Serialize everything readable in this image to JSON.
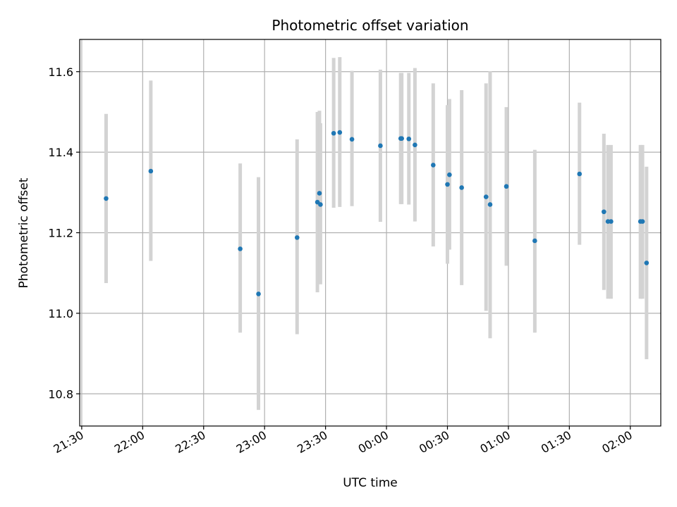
{
  "chart_data": {
    "type": "scatter",
    "title": "Photometric offset variation",
    "xlabel": "UTC time",
    "ylabel": "Photometric offset",
    "x_axis_type": "time",
    "x_start": "2023-01-01T21:30:00",
    "xlim": [
      "2023-01-01T21:29:00",
      "2023-01-02T02:15:00"
    ],
    "ylim": [
      10.72,
      11.68
    ],
    "grid": true,
    "x_ticks": [
      {
        "value": "2023-01-01T21:30:00",
        "label": "21:30"
      },
      {
        "value": "2023-01-01T22:00:00",
        "label": "22:00"
      },
      {
        "value": "2023-01-01T22:30:00",
        "label": "22:30"
      },
      {
        "value": "2023-01-01T23:00:00",
        "label": "23:00"
      },
      {
        "value": "2023-01-01T23:30:00",
        "label": "23:30"
      },
      {
        "value": "2023-01-02T00:00:00",
        "label": "00:00"
      },
      {
        "value": "2023-01-02T00:30:00",
        "label": "00:30"
      },
      {
        "value": "2023-01-02T01:00:00",
        "label": "01:00"
      },
      {
        "value": "2023-01-02T01:30:00",
        "label": "01:30"
      },
      {
        "value": "2023-01-02T02:00:00",
        "label": "02:00"
      }
    ],
    "y_ticks": [
      10.8,
      11.0,
      11.2,
      11.4,
      11.6
    ],
    "y_tick_labels": [
      "10.8",
      "11.0",
      "11.2",
      "11.4",
      "11.6"
    ],
    "marker_color": "#1f77b4",
    "errorbar_color": "#d3d3d3",
    "points": [
      {
        "time": "2023-01-01T21:42:00",
        "y": 11.285,
        "lo": 11.075,
        "hi": 11.495
      },
      {
        "time": "2023-01-01T22:04:00",
        "y": 11.353,
        "lo": 11.13,
        "hi": 11.578
      },
      {
        "time": "2023-01-01T22:48:00",
        "y": 11.16,
        "lo": 10.952,
        "hi": 11.372
      },
      {
        "time": "2023-01-01T22:57:00",
        "y": 11.048,
        "lo": 10.76,
        "hi": 11.338
      },
      {
        "time": "2023-01-01T23:16:00",
        "y": 11.188,
        "lo": 10.948,
        "hi": 11.432
      },
      {
        "time": "2023-01-01T23:26:00",
        "y": 11.276,
        "lo": 11.052,
        "hi": 11.5
      },
      {
        "time": "2023-01-01T23:27:00",
        "y": 11.298,
        "lo": 11.095,
        "hi": 11.503
      },
      {
        "time": "2023-01-01T23:27:30",
        "y": 11.27,
        "lo": 11.072,
        "hi": 11.472
      },
      {
        "time": "2023-01-01T23:34:00",
        "y": 11.447,
        "lo": 11.262,
        "hi": 11.634
      },
      {
        "time": "2023-01-01T23:37:00",
        "y": 11.449,
        "lo": 11.264,
        "hi": 11.636
      },
      {
        "time": "2023-01-01T23:43:00",
        "y": 11.432,
        "lo": 11.266,
        "hi": 11.602
      },
      {
        "time": "2023-01-01T23:57:00",
        "y": 11.416,
        "lo": 11.227,
        "hi": 11.605
      },
      {
        "time": "2023-01-02T00:07:00",
        "y": 11.434,
        "lo": 11.271,
        "hi": 11.597
      },
      {
        "time": "2023-01-02T00:07:30",
        "y": 11.434,
        "lo": 11.271,
        "hi": 11.597
      },
      {
        "time": "2023-01-02T00:11:00",
        "y": 11.433,
        "lo": 11.27,
        "hi": 11.597
      },
      {
        "time": "2023-01-02T00:14:00",
        "y": 11.418,
        "lo": 11.228,
        "hi": 11.609
      },
      {
        "time": "2023-01-02T00:23:00",
        "y": 11.368,
        "lo": 11.166,
        "hi": 11.571
      },
      {
        "time": "2023-01-02T00:30:00",
        "y": 11.32,
        "lo": 11.123,
        "hi": 11.517
      },
      {
        "time": "2023-01-02T00:31:00",
        "y": 11.344,
        "lo": 11.158,
        "hi": 11.532
      },
      {
        "time": "2023-01-02T00:37:00",
        "y": 11.312,
        "lo": 11.07,
        "hi": 11.554
      },
      {
        "time": "2023-01-02T00:49:00",
        "y": 11.289,
        "lo": 11.006,
        "hi": 11.571
      },
      {
        "time": "2023-01-02T00:51:00",
        "y": 11.27,
        "lo": 10.938,
        "hi": 11.601
      },
      {
        "time": "2023-01-02T00:59:00",
        "y": 11.315,
        "lo": 11.118,
        "hi": 11.512
      },
      {
        "time": "2023-01-02T01:13:00",
        "y": 11.18,
        "lo": 10.952,
        "hi": 11.406
      },
      {
        "time": "2023-01-02T01:35:00",
        "y": 11.346,
        "lo": 11.17,
        "hi": 11.523
      },
      {
        "time": "2023-01-02T01:47:00",
        "y": 11.252,
        "lo": 11.058,
        "hi": 11.446
      },
      {
        "time": "2023-01-02T01:49:00",
        "y": 11.228,
        "lo": 11.036,
        "hi": 11.418
      },
      {
        "time": "2023-01-02T01:50:30",
        "y": 11.228,
        "lo": 11.036,
        "hi": 11.418
      },
      {
        "time": "2023-01-02T02:05:00",
        "y": 11.228,
        "lo": 11.036,
        "hi": 11.418
      },
      {
        "time": "2023-01-02T02:06:00",
        "y": 11.228,
        "lo": 11.036,
        "hi": 11.418
      },
      {
        "time": "2023-01-02T02:08:00",
        "y": 11.125,
        "lo": 10.886,
        "hi": 11.364
      }
    ]
  }
}
